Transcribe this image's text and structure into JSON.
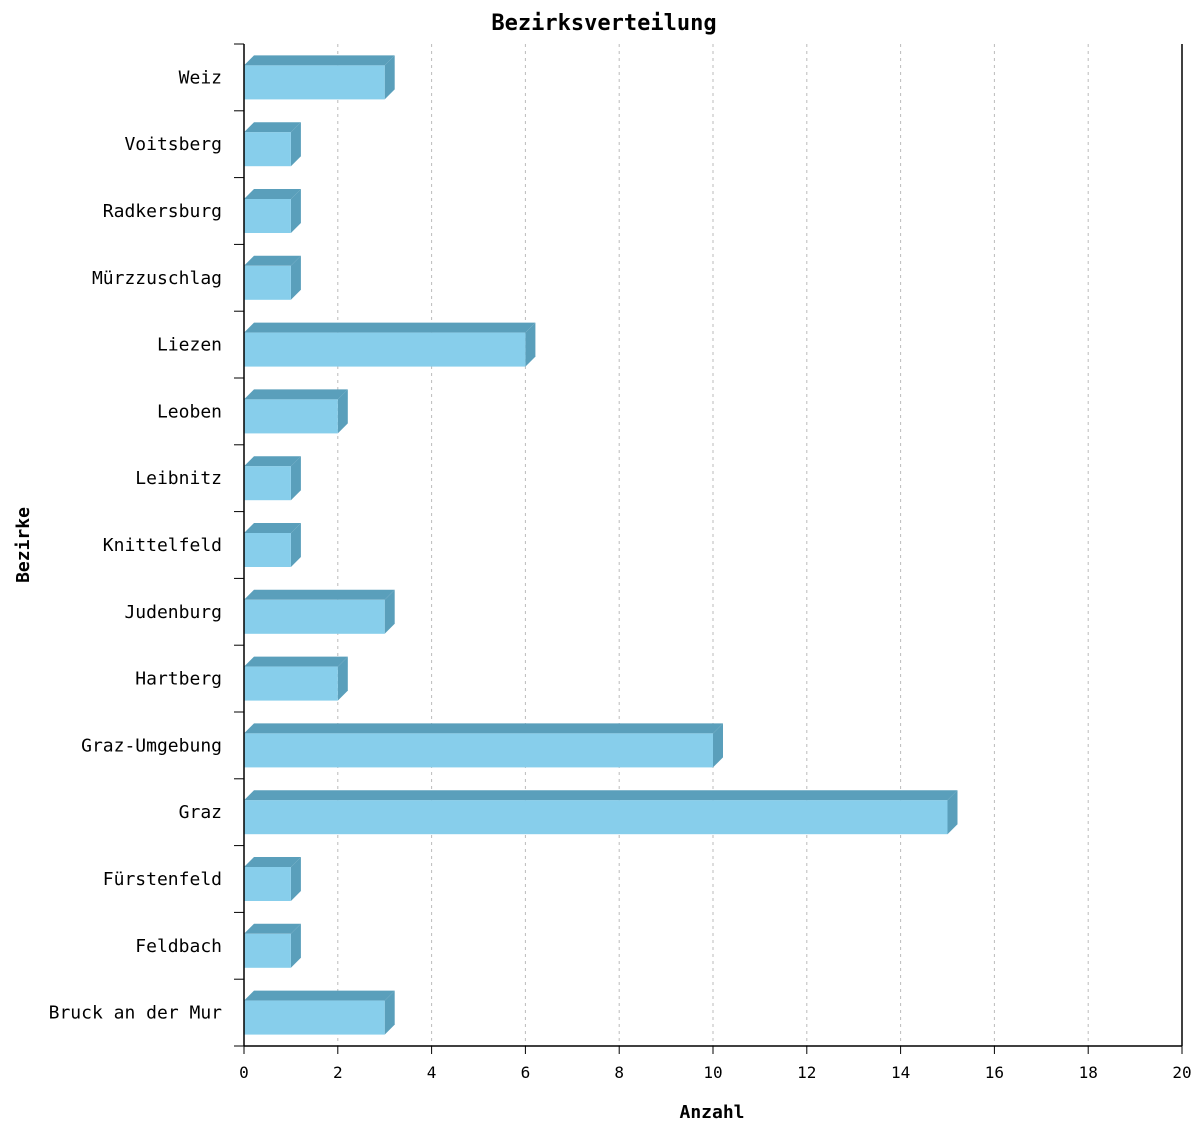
{
  "chart_data": {
    "type": "bar",
    "orientation": "horizontal",
    "title": "Bezirksverteilung",
    "xlabel": "Anzahl",
    "ylabel": "Bezirke",
    "xlim": [
      0,
      20
    ],
    "xticks": [
      "0",
      "2",
      "4",
      "6",
      "8",
      "10",
      "12",
      "14",
      "16",
      "18",
      "20"
    ],
    "grid": "vertical-dashed",
    "categories": [
      "Weiz",
      "Voitsberg",
      "Radkersburg",
      "Mürzzuschlag",
      "Liezen",
      "Leoben",
      "Leibnitz",
      "Knittelfeld",
      "Judenburg",
      "Hartberg",
      "Graz-Umgebung",
      "Graz",
      "Fürstenfeld",
      "Feldbach",
      "Bruck an der Mur"
    ],
    "values": [
      3,
      1,
      1,
      1,
      6,
      2,
      1,
      1,
      3,
      2,
      10,
      15,
      1,
      1,
      3
    ],
    "colors": {
      "bar_face": "#87ceeb",
      "bar_side": "#5a9fbb",
      "grid": "#bbbbbb",
      "axis": "#000000"
    }
  }
}
